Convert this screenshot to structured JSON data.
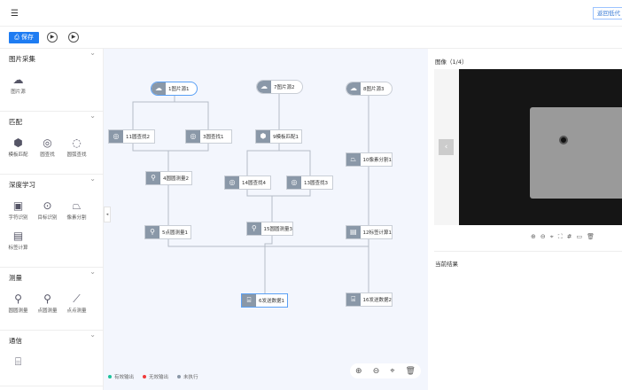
{
  "header": {
    "menu_icon": "menu-fold-icon",
    "back_label": "返回低代"
  },
  "toolbar": {
    "save_label": "保存",
    "run_icon": "play-icon",
    "loop_icon": "loop-play-icon"
  },
  "sidebar": [
    {
      "title": "图片采集",
      "items": [
        {
          "label": "图片源",
          "icon": "cloud-image-icon"
        }
      ]
    },
    {
      "title": "匹配",
      "items": [
        {
          "label": "模板匹配",
          "icon": "cube-icon"
        },
        {
          "label": "圆查找",
          "icon": "circle-search-icon"
        },
        {
          "label": "圆弧查找",
          "icon": "arc-search-icon"
        }
      ]
    },
    {
      "title": "深度学习",
      "items": [
        {
          "label": "字符识别",
          "icon": "ocr-icon"
        },
        {
          "label": "目标识别",
          "icon": "target-icon"
        },
        {
          "label": "像素分割",
          "icon": "segment-icon"
        },
        {
          "label": "标签计算",
          "icon": "label-calc-icon"
        }
      ]
    },
    {
      "title": "测量",
      "items": [
        {
          "label": "圆圆测量",
          "icon": "circle-measure-icon"
        },
        {
          "label": "点圆测量",
          "icon": "point-circle-icon"
        },
        {
          "label": "点点测量",
          "icon": "point-point-icon"
        }
      ]
    },
    {
      "title": "通信",
      "items": [
        {
          "label": "",
          "icon": "send-icon"
        }
      ]
    }
  ],
  "nodes": [
    "1图片源1",
    "7图片源2",
    "8图片源3",
    "11圆查找2",
    "3圆查找1",
    "9模板匹配1",
    "4圆圆测量2",
    "14圆查找4",
    "13圆查找3",
    "10像素分割1",
    "5点圆测量1",
    "15圆圆测量3",
    "12标签计算1",
    "6发送数据1",
    "16发送数据2"
  ],
  "legend": [
    {
      "label": "有效输出",
      "color": "#1cc29c"
    },
    {
      "label": "无效输出",
      "color": "#f03a3a"
    },
    {
      "label": "未执行",
      "color": "#8a98a8"
    }
  ],
  "right": {
    "image_title": "图像（1/4）",
    "result_title": "当前结果"
  }
}
